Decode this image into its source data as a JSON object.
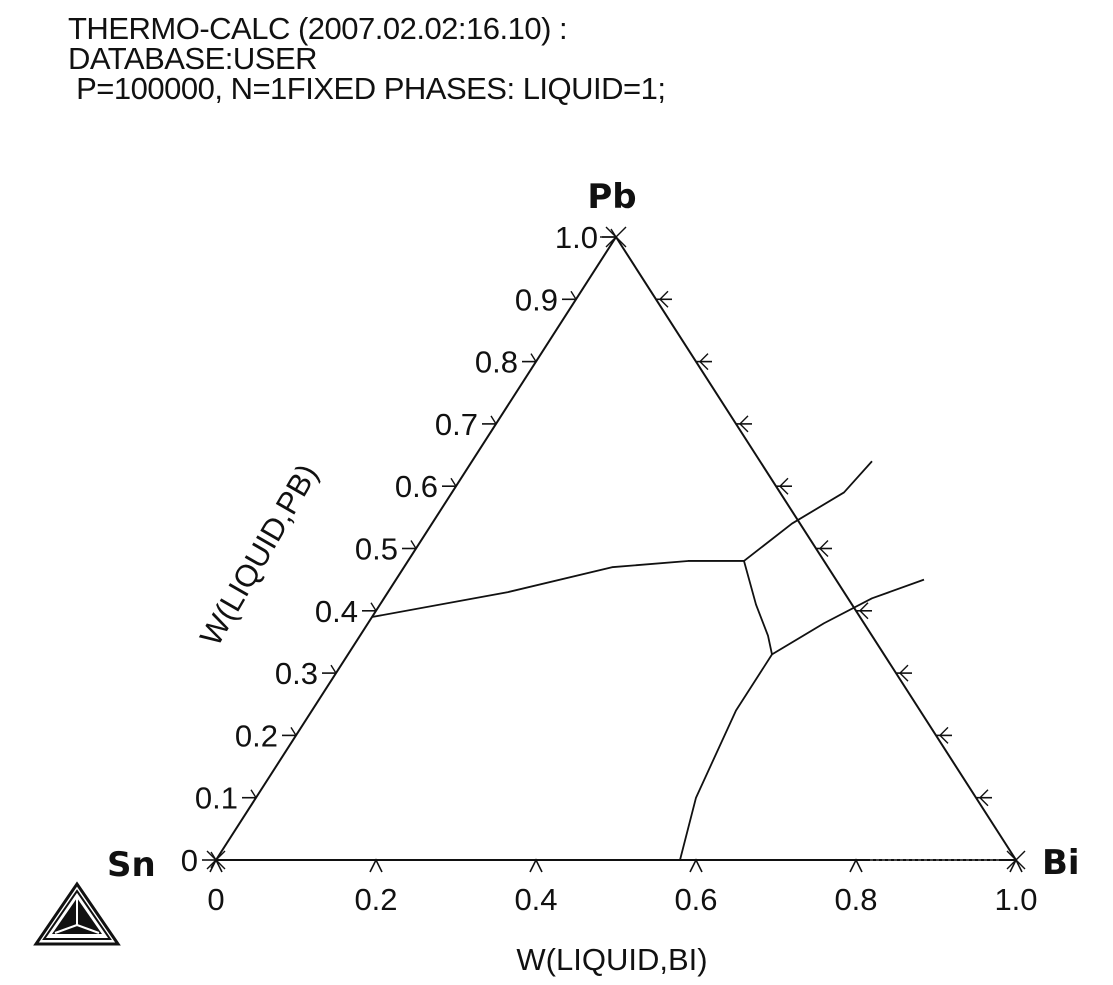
{
  "header": {
    "line1": "THERMO-CALC (2007.02.02:16.10) :",
    "line2": "DATABASE:USER",
    "line3": " P=100000, N=1FIXED PHASES: LIQUID=1;"
  },
  "chart_data": {
    "type": "ternary",
    "corners": {
      "top": "Pb",
      "left": "Sn",
      "right": "Bi"
    },
    "xlabel": "W(LIQUID,BI)",
    "ylabel": "W(LIQUID,PB)",
    "x_ticks": [
      "0",
      "0.2",
      "0.4",
      "0.6",
      "0.8",
      "1.0"
    ],
    "x_tick_values": [
      0,
      0.2,
      0.4,
      0.6,
      0.8,
      1.0
    ],
    "y_ticks": [
      "0",
      "0.1",
      "0.2",
      "0.3",
      "0.4",
      "0.5",
      "0.6",
      "0.7",
      "0.8",
      "0.9",
      "1.0"
    ],
    "y_tick_values": [
      0,
      0.1,
      0.2,
      0.3,
      0.4,
      0.5,
      0.6,
      0.7,
      0.8,
      0.9,
      1.0
    ],
    "curves": [
      {
        "points": [
          [
            0,
            0.39
          ],
          [
            0.15,
            0.43
          ],
          [
            0.26,
            0.47
          ],
          [
            0.35,
            0.48
          ],
          [
            0.42,
            0.48
          ]
        ]
      },
      {
        "points": [
          [
            0.42,
            0.48
          ],
          [
            0.47,
            0.41
          ],
          [
            0.51,
            0.36
          ],
          [
            0.53,
            0.33
          ]
        ]
      },
      {
        "points": [
          [
            0.42,
            0.48
          ],
          [
            0.45,
            0.54
          ],
          [
            0.49,
            0.59
          ],
          [
            0.5,
            0.64
          ]
        ]
      },
      {
        "points": [
          [
            0.53,
            0.33
          ],
          [
            0.57,
            0.38
          ],
          [
            0.61,
            0.42
          ],
          [
            0.66,
            0.45
          ]
        ]
      },
      {
        "points": [
          [
            0.53,
            0.33
          ],
          [
            0.53,
            0.24
          ],
          [
            0.55,
            0.1
          ],
          [
            0.58,
            0
          ]
        ]
      }
    ]
  }
}
